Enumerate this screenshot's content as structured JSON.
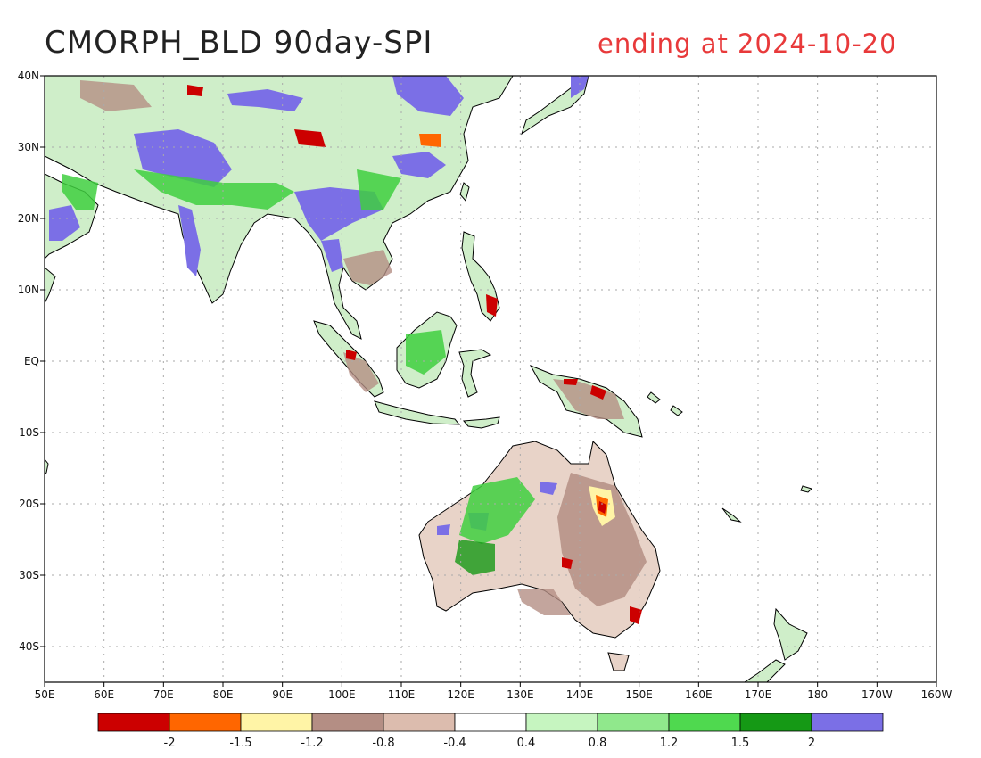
{
  "title": {
    "left": "CMORPH_BLD 90day-SPI",
    "right": "ending at 2024-10-20"
  },
  "map": {
    "lon_range": [
      50,
      200
    ],
    "lat_range": [
      -45,
      40
    ],
    "x_ticks": [
      {
        "lon": 50,
        "label": "50E"
      },
      {
        "lon": 60,
        "label": "60E"
      },
      {
        "lon": 70,
        "label": "70E"
      },
      {
        "lon": 80,
        "label": "80E"
      },
      {
        "lon": 90,
        "label": "90E"
      },
      {
        "lon": 100,
        "label": "100E"
      },
      {
        "lon": 110,
        "label": "110E"
      },
      {
        "lon": 120,
        "label": "120E"
      },
      {
        "lon": 130,
        "label": "130E"
      },
      {
        "lon": 140,
        "label": "140E"
      },
      {
        "lon": 150,
        "label": "150E"
      },
      {
        "lon": 160,
        "label": "160E"
      },
      {
        "lon": 170,
        "label": "170E"
      },
      {
        "lon": 180,
        "label": "180"
      },
      {
        "lon": 190,
        "label": "170W"
      },
      {
        "lon": 200,
        "label": "160W"
      }
    ],
    "y_ticks": [
      {
        "lat": 40,
        "label": "40N"
      },
      {
        "lat": 30,
        "label": "30N"
      },
      {
        "lat": 20,
        "label": "20N"
      },
      {
        "lat": 10,
        "label": "10N"
      },
      {
        "lat": 0,
        "label": "EQ"
      },
      {
        "lat": -10,
        "label": "10S"
      },
      {
        "lat": -20,
        "label": "20S"
      },
      {
        "lat": -30,
        "label": "30S"
      },
      {
        "lat": -40,
        "label": "40S"
      }
    ],
    "grid": true,
    "colors": {
      "ocean": "#ffffff",
      "land_base": "#cfeec9",
      "coast": "#000000",
      "grid": "#aaaaaa",
      "wet_extreme": "#7b6fe6",
      "wet_strong": "#3fcf3f",
      "wet_moderate": "#8ee48a",
      "dry_mild": "#d9b8aa",
      "dry_moderate": "#b48e84",
      "dry_strong": "#fff4a6",
      "dry_severe": "#ff6600",
      "dry_extreme": "#cc0000"
    }
  },
  "colorbar": {
    "colors": [
      "#cc0000",
      "#ff6600",
      "#fff4a6",
      "#b48e84",
      "#dcbcae",
      "#ffffff",
      "#c6f5c0",
      "#90e88c",
      "#4fd94f",
      "#159915",
      "#7b6fe6"
    ],
    "labels": [
      "-2",
      "-1.5",
      "-1.2",
      "-0.8",
      "-0.4",
      "0.4",
      "0.8",
      "1.2",
      "1.5",
      "2"
    ]
  }
}
